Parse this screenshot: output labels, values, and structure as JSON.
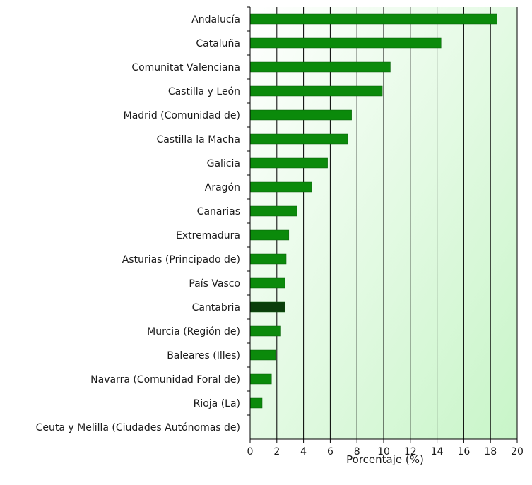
{
  "chart_data": {
    "type": "bar",
    "orientation": "horizontal",
    "categories": [
      "Andalucía",
      "Cataluña",
      "Comunitat Valenciana",
      "Castilla y León",
      "Madrid (Comunidad de)",
      "Castilla la Macha",
      "Galicia",
      "Aragón",
      "Canarias",
      "Extremadura",
      "Asturias (Principado de)",
      "País Vasco",
      "Cantabria",
      "Murcia (Región de)",
      "Baleares (Illes)",
      "Navarra (Comunidad Foral de)",
      "Rioja (La)",
      "Ceuta y Melilla (Ciudades Autónomas de)"
    ],
    "values": [
      18.5,
      14.3,
      10.5,
      9.9,
      7.6,
      7.3,
      5.8,
      4.6,
      3.5,
      2.9,
      2.7,
      2.6,
      2.6,
      2.3,
      1.9,
      1.6,
      0.9,
      0.0
    ],
    "highlight": "Cantabria",
    "xlabel": "Porcentaje (%)",
    "ylabel": "",
    "xlim": [
      0,
      20
    ],
    "xticks": [
      0,
      2,
      4,
      6,
      8,
      10,
      12,
      14,
      16,
      18,
      20
    ],
    "grid": "vertical",
    "colors": {
      "bar": "#0b8a0b",
      "bar_highlight": "#0a3d0a",
      "bar_edge": "#0a5d0a",
      "background_top": "#ffffff",
      "background_bottom": "#c8f5c8",
      "grid": "#000000"
    }
  }
}
